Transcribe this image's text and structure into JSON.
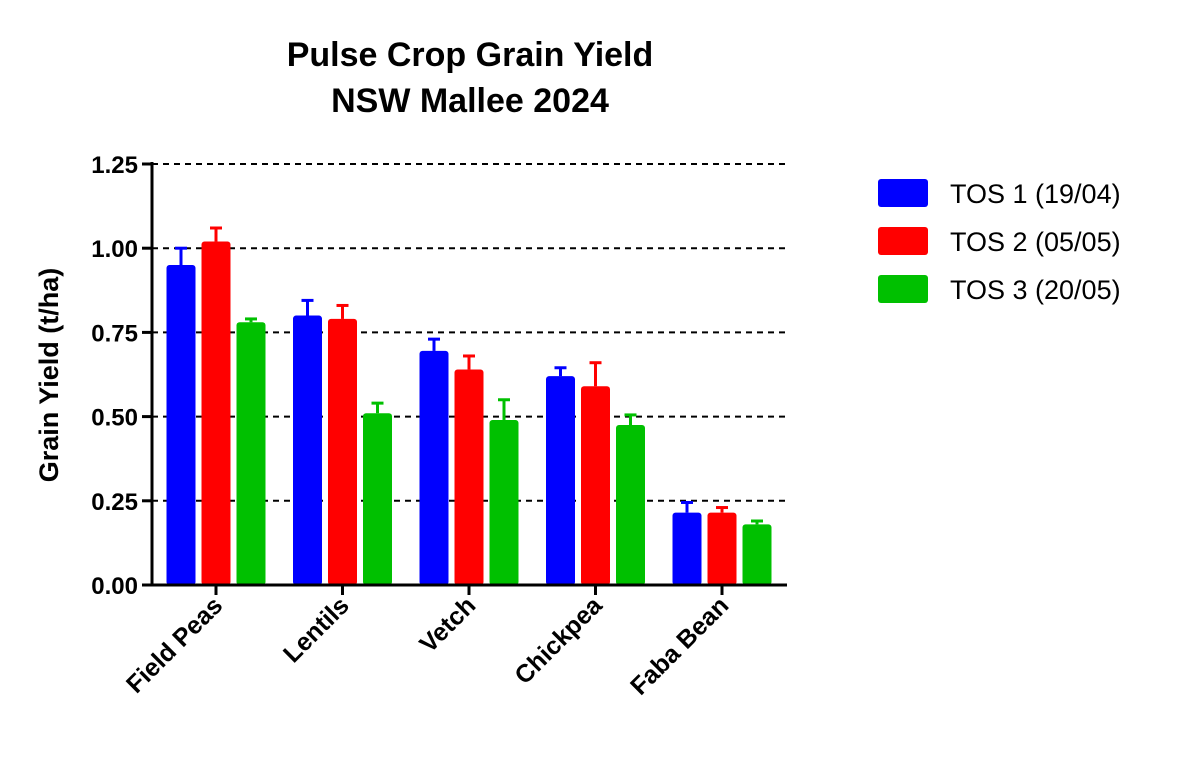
{
  "chart_data": {
    "type": "bar",
    "title": [
      "Pulse Crop Grain Yield",
      "NSW Mallee 2024"
    ],
    "xlabel": "",
    "ylabel": "Grain Yield (t/ha)",
    "ylim": [
      0,
      1.25
    ],
    "yticks": [
      "0.00",
      "0.25",
      "0.50",
      "0.75",
      "1.00",
      "1.25"
    ],
    "grid": "dashed horizontal at 0.25, 0.50, 0.75, 1.00, 1.25",
    "legend_position": "right",
    "categories": [
      "Field Peas",
      "Lentils",
      "Vetch",
      "Chickpea",
      "Faba Bean"
    ],
    "series": [
      {
        "name": "TOS 1 (19/04)",
        "color": "#0000ff",
        "values": [
          0.95,
          0.8,
          0.695,
          0.62,
          0.215
        ],
        "error_upper": [
          1.0,
          0.845,
          0.73,
          0.645,
          0.245
        ]
      },
      {
        "name": "TOS 2 (05/05)",
        "color": "#ff0000",
        "values": [
          1.02,
          0.79,
          0.64,
          0.59,
          0.215
        ],
        "error_upper": [
          1.06,
          0.83,
          0.68,
          0.66,
          0.23
        ]
      },
      {
        "name": "TOS 3 (20/05)",
        "color": "#00c000",
        "values": [
          0.78,
          0.51,
          0.49,
          0.475,
          0.18
        ],
        "error_upper": [
          0.79,
          0.54,
          0.55,
          0.505,
          0.19
        ]
      }
    ]
  }
}
